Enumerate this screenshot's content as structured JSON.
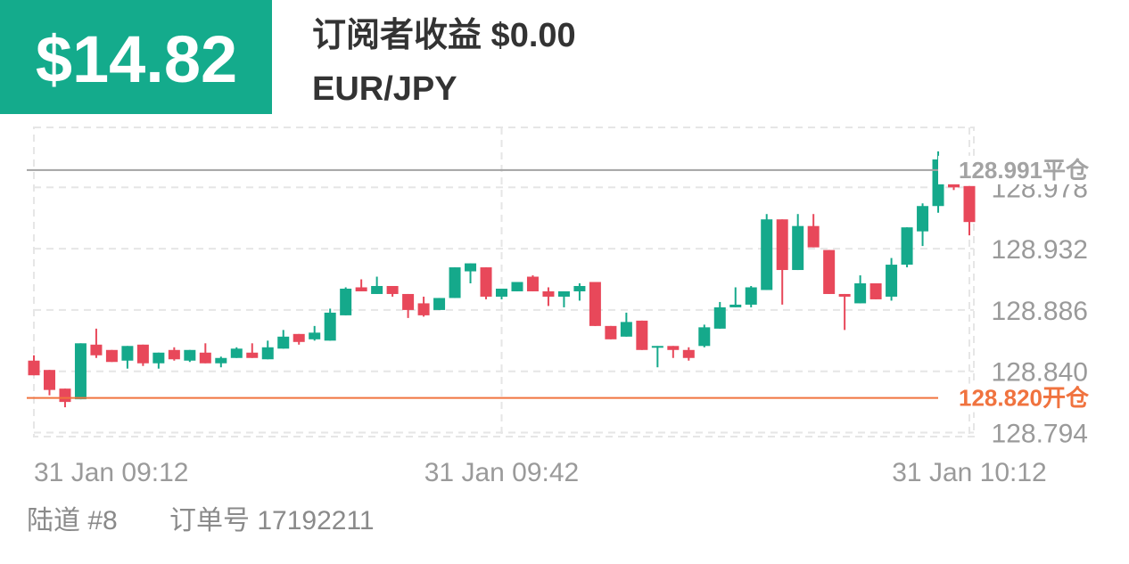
{
  "header": {
    "profit": "$14.82",
    "title": "订阅者收益 $0.00",
    "symbol": "EUR/JPY"
  },
  "chart_data": {
    "type": "candlestick",
    "categories": [
      "31 Jan 09:12",
      null,
      null,
      null,
      null,
      null,
      null,
      null,
      null,
      null,
      null,
      null,
      null,
      null,
      null,
      null,
      null,
      null,
      null,
      null,
      null,
      null,
      null,
      null,
      null,
      null,
      null,
      null,
      null,
      null,
      "31 Jan 09:42",
      null,
      null,
      null,
      null,
      null,
      null,
      null,
      null,
      null,
      null,
      null,
      null,
      null,
      null,
      null,
      null,
      null,
      null,
      null,
      null,
      null,
      null,
      null,
      null,
      null,
      null,
      null,
      null,
      null,
      "31 Jan 10:12"
    ],
    "open": [
      128.848,
      128.841,
      128.827,
      128.819,
      128.86,
      128.856,
      128.848,
      128.86,
      128.846,
      128.856,
      128.848,
      128.854,
      128.846,
      128.85,
      128.854,
      128.849,
      128.857,
      128.868,
      128.864,
      128.863,
      128.882,
      128.903,
      128.898,
      128.904,
      128.898,
      128.891,
      128.886,
      128.895,
      128.915,
      128.918,
      128.896,
      128.9,
      128.911,
      128.9,
      128.896,
      128.9,
      128.907,
      128.874,
      128.866,
      128.878,
      128.858,
      128.859,
      128.856,
      128.859,
      128.872,
      128.888,
      128.89,
      128.901,
      128.954,
      128.916,
      128.949,
      128.931,
      128.898,
      128.891,
      128.906,
      128.896,
      128.92,
      128.945,
      128.964,
      128.981,
      128.979
    ],
    "high": [
      128.852,
      128.841,
      128.827,
      128.861,
      128.872,
      128.856,
      128.859,
      128.86,
      128.854,
      128.858,
      128.856,
      128.861,
      128.851,
      128.858,
      128.861,
      128.863,
      128.871,
      128.868,
      128.874,
      128.887,
      128.903,
      128.909,
      128.911,
      128.904,
      128.898,
      128.896,
      128.895,
      128.918,
      128.921,
      128.918,
      128.902,
      128.907,
      128.912,
      128.903,
      128.9,
      128.906,
      128.907,
      128.874,
      128.884,
      128.878,
      128.859,
      128.859,
      128.858,
      128.875,
      128.892,
      128.903,
      128.904,
      128.958,
      128.954,
      128.958,
      128.958,
      128.931,
      128.898,
      128.912,
      128.906,
      128.925,
      128.948,
      128.966,
      129.005,
      128.981,
      128.979
    ],
    "low": [
      128.837,
      128.822,
      128.813,
      128.819,
      128.85,
      128.847,
      128.842,
      128.844,
      128.842,
      128.848,
      128.847,
      128.846,
      128.843,
      128.85,
      128.85,
      128.849,
      128.857,
      128.86,
      128.863,
      128.863,
      128.882,
      128.9,
      128.898,
      128.896,
      128.88,
      128.881,
      128.886,
      128.895,
      128.906,
      128.894,
      128.894,
      128.9,
      128.9,
      128.889,
      128.888,
      128.893,
      128.874,
      128.864,
      128.866,
      128.856,
      128.843,
      128.85,
      128.848,
      128.858,
      128.872,
      128.888,
      128.888,
      128.901,
      128.89,
      128.916,
      128.933,
      128.898,
      128.871,
      128.891,
      128.894,
      128.893,
      128.918,
      128.934,
      128.959,
      128.976,
      128.942
    ],
    "close": [
      128.837,
      128.826,
      128.817,
      128.861,
      128.852,
      128.847,
      128.859,
      128.846,
      128.854,
      128.849,
      128.856,
      128.846,
      128.85,
      128.857,
      128.85,
      128.858,
      128.866,
      128.862,
      128.869,
      128.884,
      128.902,
      128.9,
      128.904,
      128.898,
      128.886,
      128.882,
      128.895,
      128.918,
      128.921,
      128.896,
      128.902,
      128.907,
      128.9,
      128.896,
      128.9,
      128.904,
      128.874,
      128.864,
      128.877,
      128.856,
      128.859,
      128.856,
      128.85,
      128.873,
      128.888,
      128.89,
      128.903,
      128.954,
      128.916,
      128.949,
      128.933,
      128.898,
      128.896,
      128.906,
      128.894,
      128.92,
      128.948,
      128.964,
      128.999,
      128.978,
      128.952
    ],
    "up_color": "#15a98b",
    "down_color": "#e8485a",
    "ylim": [
      128.791,
      129.023
    ],
    "yticks": [
      {
        "value": 128.794,
        "label": "128.794"
      },
      {
        "value": 128.84,
        "label": "128.840"
      },
      128.886,
      128.932,
      128.978
    ],
    "grid": true,
    "reference_lines": [
      {
        "value": 128.991,
        "label": "128.991平仓",
        "color": "#a3a3a3"
      },
      {
        "value": 128.82,
        "label": "128.820开仓",
        "color": "#f0733f"
      }
    ]
  },
  "footer": {
    "channel": "陆道 #8",
    "order": "订单号 17192211"
  }
}
